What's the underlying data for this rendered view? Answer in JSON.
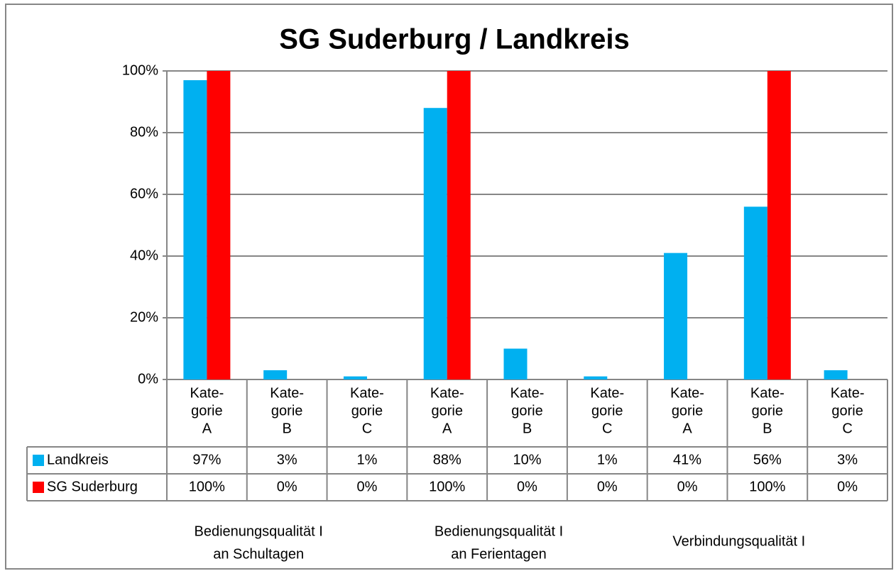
{
  "chart_data": {
    "type": "bar",
    "title": "SG Suderburg / Landkreis",
    "categories": [
      [
        "Kate-",
        "gorie",
        "A"
      ],
      [
        "Kate-",
        "gorie",
        "B"
      ],
      [
        "Kate-",
        "gorie",
        "C"
      ],
      [
        "Kate-",
        "gorie",
        "A"
      ],
      [
        "Kate-",
        "gorie",
        "B"
      ],
      [
        "Kate-",
        "gorie",
        "C"
      ],
      [
        "Kate-",
        "gorie",
        "A"
      ],
      [
        "Kate-",
        "gorie",
        "B"
      ],
      [
        "Kate-",
        "gorie",
        "C"
      ]
    ],
    "groups": [
      [
        "Bedienungsqualität I",
        "an Schultagen"
      ],
      [
        "Bedienungsqualität I",
        "an Ferientagen"
      ],
      [
        "Verbindungsqualität I"
      ]
    ],
    "series": [
      {
        "name": "Landkreis",
        "color": "#00b0f0",
        "values": [
          97,
          3,
          1,
          88,
          10,
          1,
          41,
          56,
          3
        ],
        "value_labels": [
          "97%",
          "3%",
          "1%",
          "88%",
          "10%",
          "1%",
          "41%",
          "56%",
          "3%"
        ]
      },
      {
        "name": "SG Suderburg",
        "color": "#ff0000",
        "values": [
          100,
          0,
          0,
          100,
          0,
          0,
          0,
          100,
          0
        ],
        "value_labels": [
          "100%",
          "0%",
          "0%",
          "100%",
          "0%",
          "0%",
          "0%",
          "100%",
          "0%"
        ]
      }
    ],
    "ylim": [
      0,
      100
    ],
    "yticks": [
      {
        "value": 0,
        "label": "0%"
      },
      {
        "value": 20,
        "label": "20%"
      },
      {
        "value": 40,
        "label": "40%"
      },
      {
        "value": 60,
        "label": "60%"
      },
      {
        "value": 80,
        "label": "80%"
      },
      {
        "value": 100,
        "label": "100%"
      }
    ],
    "grid": true,
    "legend": "table"
  }
}
